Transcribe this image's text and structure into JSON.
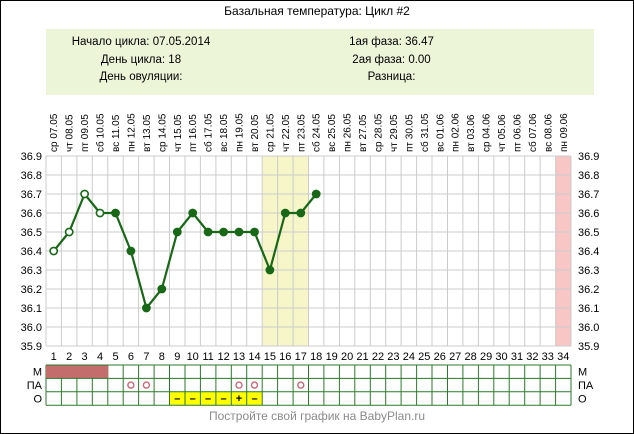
{
  "title": "Базальная температура: Цикл #2",
  "info": {
    "left": [
      {
        "label": "Начало цикла:",
        "value": "07.05.2014"
      },
      {
        "label": "День цикла:",
        "value": "18"
      },
      {
        "label": "День овуляции:",
        "value": ""
      }
    ],
    "right": [
      {
        "label": "1ая фаза:",
        "value": "36.47"
      },
      {
        "label": "2ая фаза:",
        "value": "0.00"
      },
      {
        "label": "Разница:",
        "value": ""
      }
    ]
  },
  "footer": "Постройте свой график на BabyPlan.ru",
  "row_labels": {
    "m": "М",
    "pa": "ПА",
    "o": "О"
  },
  "colors": {
    "line": "#186818",
    "grid": "#cccccc",
    "band_yellow": "#f6f6c8",
    "band_pink": "#f9c6c6",
    "menses_fill": "#c46d6d",
    "table_border": "#2a7a2a",
    "o_cell": "#ffff00",
    "o_mark": "#cc5522",
    "pa_circle": "#cc6677",
    "infobox_bg": "#edf5d9",
    "footer_text": "#8a8a8a"
  },
  "chart_data": {
    "type": "line",
    "title": "Базальная температура: Цикл #2",
    "xlabel": "",
    "ylabel": "",
    "ylim": [
      35.9,
      36.9
    ],
    "yticks": [
      "35.9",
      "36.0",
      "36.1",
      "36.2",
      "36.3",
      "36.4",
      "36.5",
      "36.6",
      "36.7",
      "36.8",
      "36.9"
    ],
    "grid": true,
    "day_numbers": [
      1,
      2,
      3,
      4,
      5,
      6,
      7,
      8,
      9,
      10,
      11,
      12,
      13,
      14,
      15,
      16,
      17,
      18,
      19,
      20,
      21,
      22,
      23,
      24,
      25,
      26,
      27,
      28,
      29,
      30,
      31,
      32,
      33,
      34
    ],
    "x_headers": [
      "ср 07.05",
      "чт 08.05",
      "пт 09.05",
      "сб 10.05",
      "вс 11.05",
      "пн 12.05",
      "вт 13.05",
      "ср 14.05",
      "чт 15.05",
      "пт 16.05",
      "сб 17.05",
      "вс 18.05",
      "пн 19.05",
      "вт 20.05",
      "ср 21.05",
      "чт 22.05",
      "пт 23.05",
      "сб 24.05",
      "вс 25.05",
      "пн 26.05",
      "вт 27.05",
      "ср 28.05",
      "чт 29.05",
      "пт 30.05",
      "сб 31.05",
      "вс 01.06",
      "пн 02.06",
      "вт 03.06",
      "ср 04.06",
      "чт 05.06",
      "пт 06.06",
      "сб 07.06",
      "вс 08.06",
      "пн 09.06"
    ],
    "temps": [
      36.4,
      36.5,
      36.7,
      36.6,
      36.6,
      36.4,
      36.1,
      36.2,
      36.5,
      36.6,
      36.5,
      36.5,
      36.5,
      36.5,
      36.3,
      36.6,
      36.6,
      36.7,
      null,
      null,
      null,
      null,
      null,
      null,
      null,
      null,
      null,
      null,
      null,
      null,
      null,
      null,
      null,
      null
    ],
    "open_marker_days": [
      1,
      2,
      3,
      4
    ],
    "highlight_bands": [
      {
        "from_day": 15,
        "to_day": 17,
        "color": "#f6f6c8",
        "name": "fertile-window-band"
      },
      {
        "from_day": 34,
        "to_day": 34,
        "color": "#f9c6c6",
        "name": "predicted-period-band"
      }
    ],
    "bottom_rows": {
      "m": {
        "label": "М",
        "filled_days": [
          1,
          2,
          3,
          4
        ]
      },
      "pa": {
        "label": "ПА",
        "circle_days": [
          6,
          7,
          13,
          14,
          17
        ]
      },
      "o": {
        "label": "О",
        "cells": [
          {
            "day": 9,
            "mark": "–"
          },
          {
            "day": 10,
            "mark": "–"
          },
          {
            "day": 11,
            "mark": "–"
          },
          {
            "day": 12,
            "mark": "–"
          },
          {
            "day": 13,
            "mark": "+"
          },
          {
            "day": 14,
            "mark": "–"
          }
        ]
      }
    }
  }
}
